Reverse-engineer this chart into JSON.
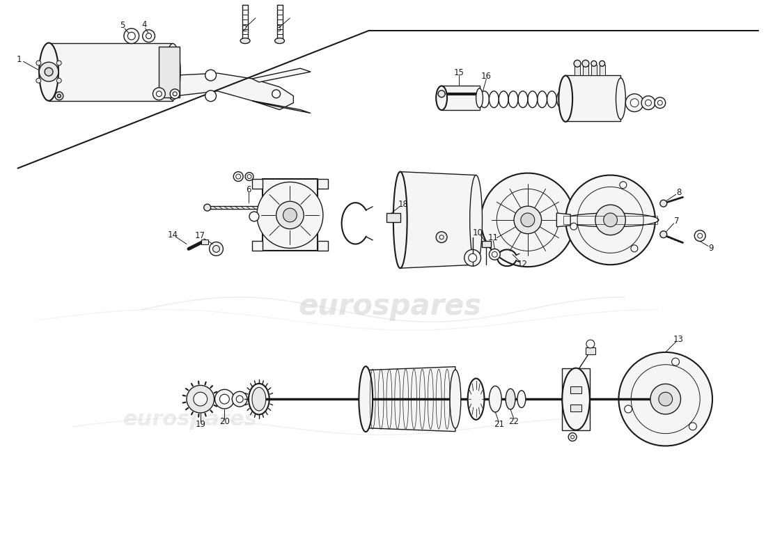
{
  "bg_color": "#ffffff",
  "line_color": "#1a1a1a",
  "watermark_color": "#d0d0d0",
  "fig_width": 11.0,
  "fig_height": 8.0,
  "lw_main": 1.0,
  "lw_thick": 1.5,
  "lw_thin": 0.7,
  "fc_light": "#f5f5f5",
  "fc_mid": "#e8e8e8",
  "fc_dark": "#d8d8d8"
}
